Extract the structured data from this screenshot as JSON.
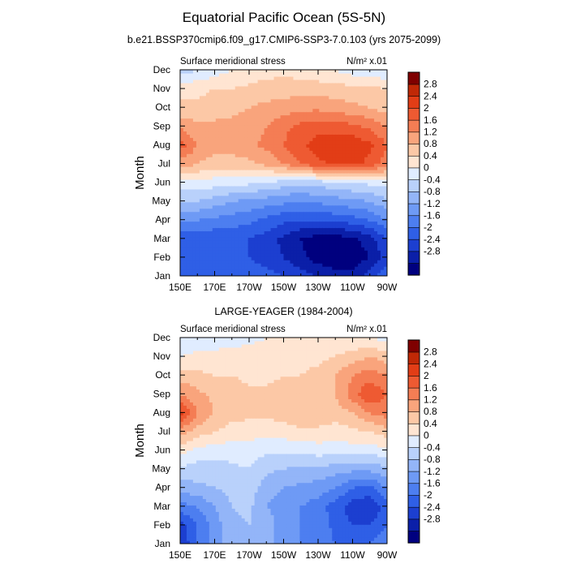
{
  "figure": {
    "title": "Equatorial Pacific Ocean (5S-5N)",
    "subtitle": "b.e21.BSSP370cmip6.f09_g17.CMIP6-SSP3-7.0.103 (yrs 2075-2099)"
  },
  "colorbar": {
    "colors": [
      "#00007f",
      "#0b1fa8",
      "#1c3fd0",
      "#2f5fe6",
      "#4d7ef0",
      "#6e9af5",
      "#93b5f8",
      "#b9d1fb",
      "#e0ecff",
      "#ffe5d2",
      "#fcc8a6",
      "#f9a47c",
      "#f47d54",
      "#ee5a32",
      "#e23d16",
      "#c02806",
      "#7f0000"
    ],
    "levels": [
      -3.2,
      -2.8,
      -2.4,
      -2.0,
      -1.6,
      -1.2,
      -0.8,
      -0.4,
      0,
      0.4,
      0.8,
      1.2,
      1.6,
      2.0,
      2.4,
      2.8,
      3.2
    ],
    "tick_labels": [
      "2.8",
      "2.4",
      "2",
      "1.6",
      "1.2",
      "0.8",
      "0.4",
      "0",
      "-0.4",
      "-0.8",
      "-1.2",
      "-1.6",
      "-2",
      "-2.4",
      "-2.8"
    ]
  },
  "chart_data": [
    {
      "type": "heatmap",
      "title": "",
      "left_label": "Surface meridional stress",
      "right_label": "N/m² x.01",
      "ylabel": "Month",
      "xlabel": "",
      "x_ticks": [
        "150E",
        "170E",
        "170W",
        "150W",
        "130W",
        "110W",
        "90W"
      ],
      "y_ticks": [
        "Jan",
        "Feb",
        "Mar",
        "Apr",
        "May",
        "Jun",
        "Jul",
        "Aug",
        "Sep",
        "Oct",
        "Nov",
        "Dec"
      ],
      "x_lon_east": [
        150,
        160,
        170,
        180,
        190,
        200,
        210,
        220,
        230,
        240,
        250,
        260,
        270
      ],
      "values": [
        [
          -1.6,
          -1.6,
          -1.6,
          -1.6,
          -1.7,
          -1.8,
          -2.0,
          -2.2,
          -2.4,
          -2.6,
          -2.6,
          -2.2,
          -1.6
        ],
        [
          -2.0,
          -2.0,
          -1.9,
          -1.9,
          -2.0,
          -2.2,
          -2.4,
          -2.7,
          -3.0,
          -3.1,
          -3.1,
          -2.8,
          -2.2
        ],
        [
          -1.9,
          -1.9,
          -1.9,
          -1.9,
          -2.0,
          -2.2,
          -2.5,
          -2.8,
          -3.0,
          -3.0,
          -2.9,
          -2.6,
          -2.0
        ],
        [
          -1.2,
          -1.2,
          -1.3,
          -1.4,
          -1.5,
          -1.7,
          -1.9,
          -2.0,
          -2.0,
          -1.9,
          -1.8,
          -1.6,
          -1.2
        ],
        [
          -0.4,
          -0.4,
          -0.6,
          -0.8,
          -0.9,
          -1.0,
          -1.1,
          -1.2,
          -1.1,
          -1.0,
          -0.9,
          -0.8,
          -0.5
        ],
        [
          0.3,
          0.3,
          0.2,
          0.2,
          0.1,
          0.0,
          -0.2,
          -0.3,
          -0.2,
          -0.1,
          0.0,
          0.1,
          0.2
        ],
        [
          1.4,
          1.2,
          1.0,
          1.0,
          1.1,
          1.3,
          1.6,
          2.0,
          2.3,
          2.5,
          2.5,
          2.3,
          1.8
        ],
        [
          2.2,
          1.6,
          1.4,
          1.4,
          1.5,
          1.7,
          2.0,
          2.3,
          2.6,
          2.7,
          2.7,
          2.5,
          2.0
        ],
        [
          1.5,
          1.3,
          1.3,
          1.3,
          1.4,
          1.6,
          1.9,
          2.1,
          2.2,
          2.2,
          2.1,
          1.9,
          1.6
        ],
        [
          0.9,
          0.9,
          1.0,
          1.1,
          1.2,
          1.3,
          1.4,
          1.5,
          1.5,
          1.4,
          1.3,
          1.2,
          1.0
        ],
        [
          0.7,
          0.7,
          0.8,
          0.8,
          0.9,
          1.0,
          1.0,
          1.0,
          1.0,
          1.0,
          0.9,
          0.9,
          0.8
        ],
        [
          -0.2,
          0.0,
          0.2,
          0.4,
          0.5,
          0.6,
          0.7,
          0.6,
          0.5,
          0.4,
          0.2,
          0.2,
          0.0
        ]
      ],
      "zlim": [
        -3.2,
        3.2
      ],
      "grid": false
    },
    {
      "type": "heatmap",
      "title": "LARGE-YEAGER (1984-2004)",
      "left_label": "Surface meridional stress",
      "right_label": "N/m² x.01",
      "ylabel": "Month",
      "xlabel": "",
      "x_ticks": [
        "150E",
        "170E",
        "170W",
        "150W",
        "130W",
        "110W",
        "90W"
      ],
      "y_ticks": [
        "Jan",
        "Feb",
        "Mar",
        "Apr",
        "May",
        "Jun",
        "Jul",
        "Aug",
        "Sep",
        "Oct",
        "Nov",
        "Dec"
      ],
      "x_lon_east": [
        150,
        160,
        170,
        180,
        190,
        200,
        210,
        220,
        230,
        240,
        250,
        260,
        270
      ],
      "values": [
        [
          -2.4,
          -1.6,
          -1.0,
          -0.6,
          -0.4,
          -0.6,
          -1.0,
          -1.2,
          -1.4,
          -1.6,
          -1.8,
          -1.6,
          -1.2
        ],
        [
          -2.2,
          -1.6,
          -1.0,
          -0.5,
          -0.4,
          -0.6,
          -1.0,
          -1.2,
          -1.4,
          -1.7,
          -2.0,
          -2.0,
          -1.6
        ],
        [
          -1.4,
          -1.2,
          -0.8,
          -0.4,
          -0.3,
          -0.8,
          -1.0,
          -1.2,
          -1.4,
          -1.8,
          -2.2,
          -2.4,
          -1.8
        ],
        [
          -0.6,
          -0.5,
          -0.4,
          -0.3,
          -0.2,
          -0.6,
          -0.8,
          -0.9,
          -1.0,
          -1.2,
          -1.6,
          -1.7,
          -1.2
        ],
        [
          -0.1,
          -0.2,
          -0.2,
          -0.1,
          0.0,
          -0.3,
          -0.4,
          -0.5,
          -0.5,
          -0.6,
          -0.7,
          -0.7,
          -0.5
        ],
        [
          0.6,
          0.3,
          0.2,
          0.2,
          0.2,
          0.1,
          0.1,
          0.1,
          0.2,
          0.2,
          0.2,
          0.2,
          0.3
        ],
        [
          1.4,
          1.0,
          0.8,
          0.6,
          0.6,
          0.5,
          0.6,
          0.7,
          0.7,
          0.6,
          0.7,
          0.8,
          1.0
        ],
        [
          2.6,
          1.6,
          1.2,
          1.0,
          0.9,
          0.9,
          1.0,
          1.2,
          1.1,
          1.0,
          1.2,
          1.6,
          1.8
        ],
        [
          1.6,
          1.3,
          1.1,
          1.0,
          0.9,
          0.9,
          0.9,
          1.0,
          1.0,
          1.2,
          1.8,
          2.4,
          2.0
        ],
        [
          1.0,
          0.9,
          0.8,
          0.8,
          0.7,
          0.7,
          0.8,
          0.8,
          0.9,
          1.2,
          1.6,
          1.8,
          1.6
        ],
        [
          0.4,
          0.5,
          0.5,
          0.6,
          0.6,
          0.6,
          0.7,
          0.7,
          0.7,
          0.8,
          1.0,
          1.2,
          1.0
        ],
        [
          0.0,
          0.2,
          0.2,
          0.2,
          0.3,
          0.4,
          0.5,
          0.6,
          0.6,
          0.5,
          0.4,
          0.4,
          0.2
        ]
      ],
      "zlim": [
        -3.2,
        3.2
      ],
      "grid": false
    }
  ]
}
